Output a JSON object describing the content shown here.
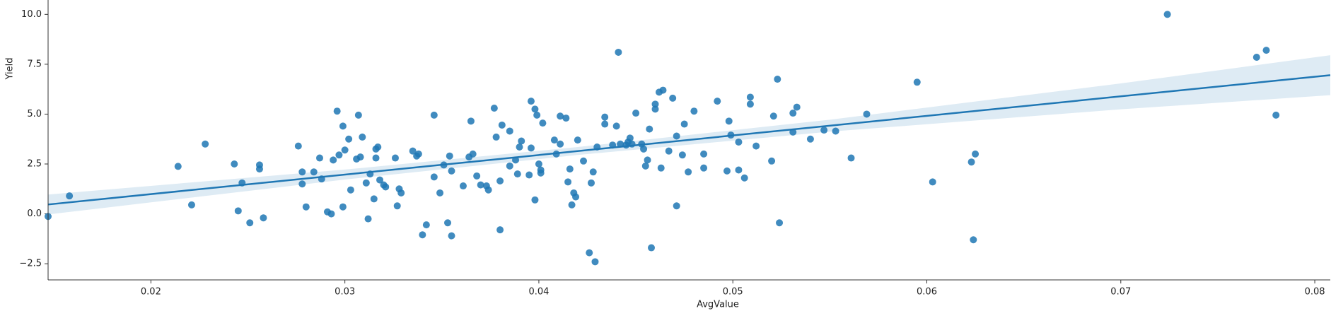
{
  "chart_data": {
    "type": "scatter",
    "xlabel": "AvgValue",
    "ylabel": "Yield",
    "color": "#1f77b4",
    "x": [
      0.0147,
      0.0158,
      0.0214,
      0.0221,
      0.0228,
      0.0243,
      0.0245,
      0.0247,
      0.0251,
      0.0256,
      0.0256,
      0.0258,
      0.0276,
      0.0278,
      0.0278,
      0.028,
      0.0284,
      0.0287,
      0.0288,
      0.0291,
      0.0293,
      0.0294,
      0.0296,
      0.0297,
      0.0299,
      0.0299,
      0.03,
      0.0302,
      0.0303,
      0.0306,
      0.0307,
      0.0308,
      0.0309,
      0.0311,
      0.0312,
      0.0313,
      0.0315,
      0.0316,
      0.0316,
      0.0317,
      0.0318,
      0.032,
      0.0321,
      0.0326,
      0.0327,
      0.0328,
      0.0329,
      0.0335,
      0.0337,
      0.0338,
      0.034,
      0.0342,
      0.0346,
      0.0346,
      0.0349,
      0.0351,
      0.0353,
      0.0354,
      0.0355,
      0.0355,
      0.0361,
      0.0364,
      0.0365,
      0.0366,
      0.0368,
      0.037,
      0.0373,
      0.0374,
      0.0377,
      0.0378,
      0.038,
      0.038,
      0.0381,
      0.0385,
      0.0385,
      0.0388,
      0.0389,
      0.039,
      0.0391,
      0.0395,
      0.0396,
      0.0396,
      0.0398,
      0.0398,
      0.0399,
      0.04,
      0.0401,
      0.0401,
      0.0402,
      0.0408,
      0.0409,
      0.0411,
      0.0411,
      0.0414,
      0.0415,
      0.0416,
      0.0417,
      0.0418,
      0.0419,
      0.042,
      0.0423,
      0.0426,
      0.0427,
      0.0428,
      0.0429,
      0.043,
      0.0434,
      0.0434,
      0.0438,
      0.044,
      0.0441,
      0.0442,
      0.0445,
      0.0446,
      0.0447,
      0.0448,
      0.045,
      0.0453,
      0.0454,
      0.0455,
      0.0456,
      0.0457,
      0.0458,
      0.046,
      0.046,
      0.0462,
      0.0464,
      0.0463,
      0.0467,
      0.0469,
      0.0471,
      0.0471,
      0.0474,
      0.0475,
      0.0477,
      0.048,
      0.0485,
      0.0485,
      0.0492,
      0.0497,
      0.0498,
      0.0499,
      0.0503,
      0.0503,
      0.0506,
      0.0509,
      0.0509,
      0.0512,
      0.052,
      0.0521,
      0.0523,
      0.0524,
      0.0531,
      0.0531,
      0.0533,
      0.054,
      0.0547,
      0.0553,
      0.0561,
      0.0569,
      0.0595,
      0.0603,
      0.0623,
      0.0625,
      0.0624,
      0.0724,
      0.077,
      0.0775,
      0.078
    ],
    "values": [
      -0.13,
      0.9,
      2.38,
      0.45,
      3.5,
      2.5,
      0.15,
      1.55,
      -0.45,
      2.45,
      2.25,
      -0.2,
      3.4,
      1.5,
      2.1,
      0.35,
      2.1,
      2.8,
      1.75,
      0.1,
      0,
      2.7,
      5.15,
      2.95,
      4.4,
      0.35,
      3.2,
      3.75,
      1.2,
      2.75,
      4.95,
      2.85,
      3.85,
      1.55,
      -0.25,
      2.0,
      0.75,
      2.8,
      3.25,
      3.35,
      1.7,
      1.45,
      1.35,
      2.8,
      0.4,
      1.25,
      1.05,
      3.15,
      2.9,
      3.0,
      -1.05,
      -0.55,
      4.95,
      1.85,
      1.05,
      2.45,
      -0.45,
      2.9,
      -1.1,
      2.15,
      1.4,
      2.85,
      4.65,
      3.0,
      1.9,
      1.45,
      1.4,
      1.2,
      5.3,
      3.85,
      1.65,
      -0.8,
      4.45,
      4.15,
      2.4,
      2.7,
      2.0,
      3.35,
      3.65,
      1.95,
      5.65,
      3.3,
      5.25,
      0.7,
      4.95,
      2.5,
      2.2,
      2.05,
      4.55,
      3.7,
      3.0,
      4.9,
      3.5,
      4.8,
      1.6,
      2.25,
      0.45,
      1.05,
      0.85,
      3.7,
      2.65,
      -1.95,
      1.55,
      2.1,
      -2.4,
      3.35,
      4.85,
      4.5,
      3.45,
      4.4,
      8.1,
      3.5,
      3.45,
      3.6,
      3.8,
      3.5,
      5.05,
      3.5,
      3.25,
      2.4,
      2.7,
      4.25,
      -1.7,
      5.5,
      5.25,
      6.1,
      6.2,
      2.3,
      3.15,
      5.8,
      3.9,
      0.4,
      2.95,
      4.5,
      2.1,
      5.15,
      3.0,
      2.3,
      5.65,
      2.15,
      4.65,
      3.95,
      3.6,
      2.2,
      1.8,
      5.85,
      5.5,
      3.4,
      2.65,
      4.9,
      6.75,
      -0.45,
      5.05,
      4.1,
      5.35,
      3.75,
      4.2,
      4.15,
      2.8,
      5.0,
      6.6,
      1.6,
      2.6,
      3.0,
      -1.3,
      10.0,
      7.85,
      8.2,
      4.95
    ],
    "regression": {
      "x": [
        0.0147,
        0.0808
      ],
      "values": [
        0.47,
        6.95
      ],
      "ci_x": [
        0.0147,
        0.03,
        0.042,
        0.055,
        0.07,
        0.0808
      ],
      "ci_lower": [
        -0.03,
        1.72,
        2.95,
        4.12,
        5.24,
        5.95
      ],
      "ci_upper": [
        0.97,
        2.22,
        3.35,
        4.72,
        6.54,
        7.95
      ]
    },
    "xlim": [
      0.0147,
      0.0808
    ],
    "ylim": [
      -3.31,
      10.72
    ],
    "xticks": [
      0.02,
      0.03,
      0.04,
      0.05,
      0.06,
      0.07,
      0.08
    ],
    "yticks": [
      {
        "value": 10,
        "label": "10.0"
      },
      7.5,
      {
        "value": 5,
        "label": "5.0"
      },
      2.5,
      {
        "value": 0,
        "label": "0.0"
      },
      {
        "value": -2.5,
        "label": "−2.5"
      }
    ],
    "grid": false
  }
}
